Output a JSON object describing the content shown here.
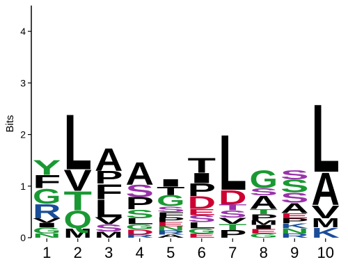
{
  "chart_data": {
    "type": "sequence-logo",
    "ylabel": "Bits",
    "ylim": [
      0,
      4.5
    ],
    "yticks": [
      0,
      1,
      2,
      3,
      4
    ],
    "positions": [
      "1",
      "2",
      "3",
      "4",
      "5",
      "6",
      "7",
      "8",
      "9",
      "10"
    ],
    "colors": {
      "hydrophobic": "#000000",
      "polar": "#1a9933",
      "acidic": "#cc0033",
      "basic": "#1a4d99",
      "neutral_polar": "#9933aa"
    },
    "stacks": [
      [
        {
          "letter": "N",
          "bits": 0.08,
          "color": "#1a9933"
        },
        {
          "letter": "G",
          "bits": 0.12,
          "color": "#1a9933"
        },
        {
          "letter": "I",
          "bits": 0.09,
          "color": "#000000"
        },
        {
          "letter": "V",
          "bits": 0.09,
          "color": "#000000"
        },
        {
          "letter": "R",
          "bits": 0.28,
          "color": "#1a4d99"
        },
        {
          "letter": "G",
          "bits": 0.3,
          "color": "#1a9933"
        },
        {
          "letter": "F",
          "bits": 0.26,
          "color": "#000000"
        },
        {
          "letter": "Y",
          "bits": 0.3,
          "color": "#1a9933"
        }
      ],
      [
        {
          "letter": "M",
          "bits": 0.18,
          "color": "#000000"
        },
        {
          "letter": "Q",
          "bits": 0.35,
          "color": "#1a9933"
        },
        {
          "letter": "T",
          "bits": 0.38,
          "color": "#1a9933"
        },
        {
          "letter": "V",
          "bits": 0.42,
          "color": "#000000"
        },
        {
          "letter": "L",
          "bits": 1.1,
          "color": "#000000"
        }
      ],
      [
        {
          "letter": "M",
          "bits": 0.12,
          "color": "#000000"
        },
        {
          "letter": "S",
          "bits": 0.14,
          "color": "#9933aa"
        },
        {
          "letter": "V",
          "bits": 0.14,
          "color": "#000000"
        },
        {
          "letter": "L",
          "bits": 0.35,
          "color": "#000000"
        },
        {
          "letter": "F",
          "bits": 0.3,
          "color": "#000000"
        },
        {
          "letter": "P",
          "bits": 0.25,
          "color": "#000000"
        },
        {
          "letter": "A",
          "bits": 0.45,
          "color": "#000000"
        }
      ],
      [
        {
          "letter": "R",
          "bits": 0.06,
          "color": "#1a4d99"
        },
        {
          "letter": "D",
          "bits": 0.1,
          "color": "#cc0033"
        },
        {
          "letter": "G",
          "bits": 0.1,
          "color": "#1a9933"
        },
        {
          "letter": "L",
          "bits": 0.12,
          "color": "#000000"
        },
        {
          "letter": "S",
          "bits": 0.17,
          "color": "#1a9933"
        },
        {
          "letter": "P",
          "bits": 0.24,
          "color": "#000000"
        },
        {
          "letter": "S",
          "bits": 0.24,
          "color": "#9933aa"
        },
        {
          "letter": "A",
          "bits": 0.45,
          "color": "#000000"
        }
      ],
      [
        {
          "letter": "A",
          "bits": 0.06,
          "color": "#000000"
        },
        {
          "letter": "R",
          "bits": 0.08,
          "color": "#1a4d99"
        },
        {
          "letter": "N",
          "bits": 0.08,
          "color": "#1a9933"
        },
        {
          "letter": "E",
          "bits": 0.08,
          "color": "#cc0033"
        },
        {
          "letter": "P",
          "bits": 0.1,
          "color": "#000000"
        },
        {
          "letter": "F",
          "bits": 0.1,
          "color": "#000000"
        },
        {
          "letter": "S",
          "bits": 0.11,
          "color": "#9933aa"
        },
        {
          "letter": "G",
          "bits": 0.22,
          "color": "#1a9933"
        },
        {
          "letter": "T",
          "bits": 0.16,
          "color": "#000000"
        },
        {
          "letter": "I",
          "bits": 0.15,
          "color": "#000000"
        }
      ],
      [
        {
          "letter": "E",
          "bits": 0.08,
          "color": "#cc0033"
        },
        {
          "letter": "G",
          "bits": 0.1,
          "color": "#1a9933"
        },
        {
          "letter": "L",
          "bits": 0.12,
          "color": "#000000"
        },
        {
          "letter": "S",
          "bits": 0.14,
          "color": "#9933aa"
        },
        {
          "letter": "E",
          "bits": 0.12,
          "color": "#cc0033"
        },
        {
          "letter": "D",
          "bits": 0.25,
          "color": "#cc0033"
        },
        {
          "letter": "P",
          "bits": 0.25,
          "color": "#000000"
        },
        {
          "letter": "I",
          "bits": 0.2,
          "color": "#000000"
        },
        {
          "letter": "T",
          "bits": 0.3,
          "color": "#000000"
        }
      ],
      [
        {
          "letter": "P",
          "bits": 0.15,
          "color": "#000000"
        },
        {
          "letter": "T",
          "bits": 0.12,
          "color": "#1a9933"
        },
        {
          "letter": "V",
          "bits": 0.12,
          "color": "#000000"
        },
        {
          "letter": "S",
          "bits": 0.14,
          "color": "#9933aa"
        },
        {
          "letter": "T",
          "bits": 0.12,
          "color": "#9933aa"
        },
        {
          "letter": "D",
          "bits": 0.28,
          "color": "#cc0033"
        },
        {
          "letter": "L",
          "bits": 1.1,
          "color": "#000000"
        }
      ],
      [
        {
          "letter": "G",
          "bits": 0.08,
          "color": "#1a9933"
        },
        {
          "letter": "E",
          "bits": 0.09,
          "color": "#cc0033"
        },
        {
          "letter": "I",
          "bits": 0.08,
          "color": "#000000"
        },
        {
          "letter": "M",
          "bits": 0.09,
          "color": "#000000"
        },
        {
          "letter": "P",
          "bits": 0.12,
          "color": "#000000"
        },
        {
          "letter": "T",
          "bits": 0.1,
          "color": "#1a9933"
        },
        {
          "letter": "A",
          "bits": 0.26,
          "color": "#000000"
        },
        {
          "letter": "S",
          "bits": 0.14,
          "color": "#9933aa"
        },
        {
          "letter": "G",
          "bits": 0.35,
          "color": "#1a9933"
        }
      ],
      [
        {
          "letter": "R",
          "bits": 0.08,
          "color": "#1a4d99"
        },
        {
          "letter": "N",
          "bits": 0.1,
          "color": "#1a9933"
        },
        {
          "letter": "K",
          "bits": 0.1,
          "color": "#1a4d99"
        },
        {
          "letter": "P",
          "bits": 0.1,
          "color": "#000000"
        },
        {
          "letter": "E",
          "bits": 0.1,
          "color": "#cc0033"
        },
        {
          "letter": "A",
          "bits": 0.2,
          "color": "#000000"
        },
        {
          "letter": "S",
          "bits": 0.2,
          "color": "#9933aa"
        },
        {
          "letter": "S",
          "bits": 0.25,
          "color": "#1a9933"
        },
        {
          "letter": "S",
          "bits": 0.18,
          "color": "#9933aa"
        }
      ],
      [
        {
          "letter": "K",
          "bits": 0.2,
          "color": "#1a4d99"
        },
        {
          "letter": "M",
          "bits": 0.18,
          "color": "#000000"
        },
        {
          "letter": "V",
          "bits": 0.25,
          "color": "#000000"
        },
        {
          "letter": "A",
          "bits": 0.65,
          "color": "#000000"
        },
        {
          "letter": "L",
          "bits": 1.35,
          "color": "#000000"
        }
      ]
    ]
  }
}
